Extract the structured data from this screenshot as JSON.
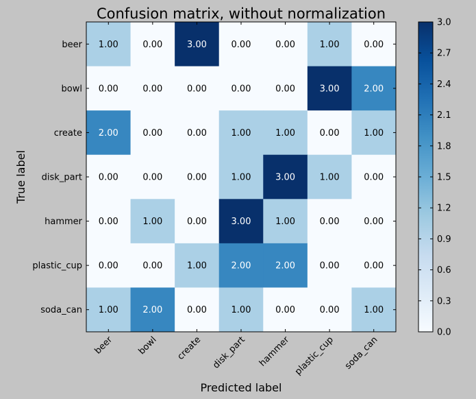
{
  "chart_data": {
    "type": "heatmap",
    "title": "Confusion matrix, without normalization",
    "xlabel": "Predicted label",
    "ylabel": "True label",
    "x_categories": [
      "beer",
      "bowl",
      "create",
      "disk_part",
      "hammer",
      "plastic_cup",
      "soda_can"
    ],
    "y_categories": [
      "beer",
      "bowl",
      "create",
      "disk_part",
      "hammer",
      "plastic_cup",
      "soda_can"
    ],
    "values": [
      [
        1,
        0,
        3,
        0,
        0,
        1,
        0
      ],
      [
        0,
        0,
        0,
        0,
        0,
        3,
        2
      ],
      [
        2,
        0,
        0,
        1,
        1,
        0,
        1
      ],
      [
        0,
        0,
        0,
        1,
        3,
        1,
        0
      ],
      [
        0,
        1,
        0,
        3,
        1,
        0,
        0
      ],
      [
        0,
        0,
        1,
        2,
        2,
        0,
        0
      ],
      [
        1,
        2,
        0,
        1,
        0,
        0,
        1
      ]
    ],
    "cell_labels": [
      [
        "1.00",
        "0.00",
        "3.00",
        "0.00",
        "0.00",
        "1.00",
        "0.00"
      ],
      [
        "0.00",
        "0.00",
        "0.00",
        "0.00",
        "0.00",
        "3.00",
        "2.00"
      ],
      [
        "2.00",
        "0.00",
        "0.00",
        "1.00",
        "1.00",
        "0.00",
        "1.00"
      ],
      [
        "0.00",
        "0.00",
        "0.00",
        "1.00",
        "3.00",
        "1.00",
        "0.00"
      ],
      [
        "0.00",
        "1.00",
        "0.00",
        "3.00",
        "1.00",
        "0.00",
        "0.00"
      ],
      [
        "0.00",
        "0.00",
        "1.00",
        "2.00",
        "2.00",
        "0.00",
        "0.00"
      ],
      [
        "1.00",
        "2.00",
        "0.00",
        "1.00",
        "0.00",
        "0.00",
        "1.00"
      ]
    ],
    "colormap": "Blues",
    "vmin": 0,
    "vmax": 3,
    "colorbar_ticks": [
      0.0,
      0.3,
      0.6,
      0.9,
      1.2,
      1.5,
      1.8,
      2.1,
      2.4,
      2.7,
      3.0
    ],
    "colorbar_tick_labels": [
      "0.0",
      "0.3",
      "0.6",
      "0.9",
      "1.2",
      "1.5",
      "1.8",
      "2.1",
      "2.4",
      "2.7",
      "3.0"
    ],
    "colors": {
      "background": "#c4c4c4",
      "low": "#f7fbff",
      "high": "#08306b",
      "text_light": "#ffffff",
      "text_dark": "#000000"
    }
  }
}
